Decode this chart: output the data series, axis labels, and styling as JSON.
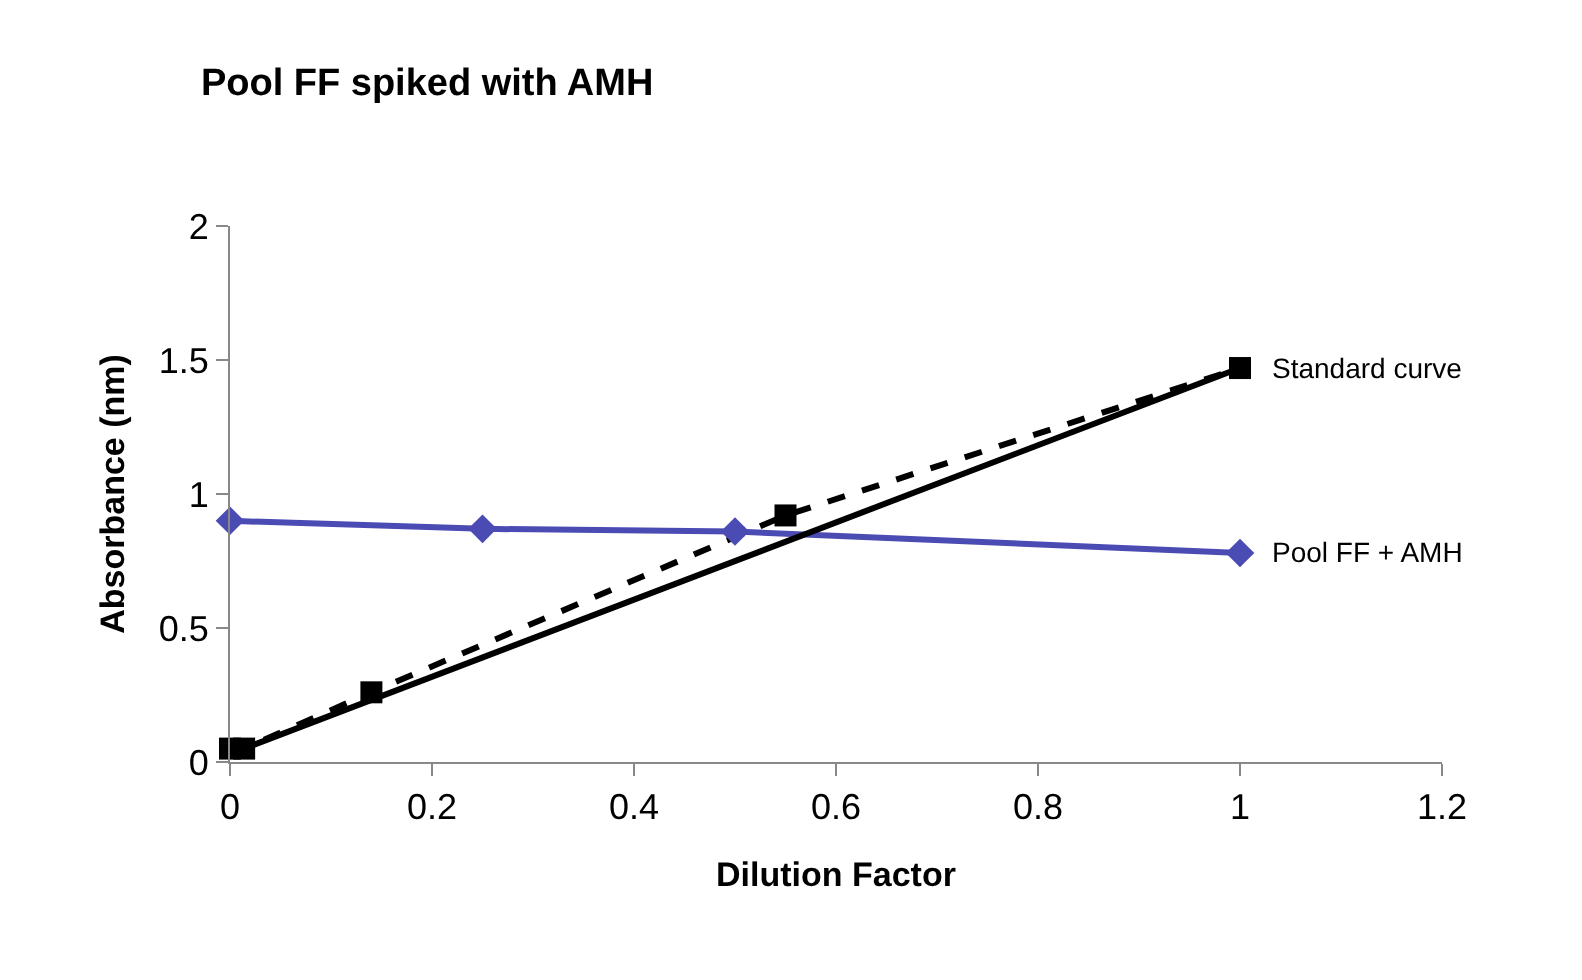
{
  "chart_data": {
    "type": "line",
    "title": "Pool FF spiked with AMH",
    "xlabel": "Dilution Factor",
    "ylabel": "Absorbance (nm)",
    "xlim": [
      0,
      1.2
    ],
    "xticks": [
      0,
      0.2,
      0.4,
      0.6,
      0.8,
      1,
      1.2
    ],
    "ylim": [
      0,
      2
    ],
    "yticks": [
      0,
      0.5,
      1,
      1.5,
      2
    ],
    "grid": false,
    "legend": false,
    "series": [
      {
        "name": "Standard curve",
        "color": "#000000",
        "marker": "square",
        "line_style": "dashed",
        "x": [
          0,
          0.014,
          0.14,
          0.55,
          1
        ],
        "values": [
          0.05,
          0.05,
          0.26,
          0.92,
          1.47
        ]
      },
      {
        "name": "Pool FF + AMH",
        "color": "#4b4bb4",
        "marker": "diamond",
        "line_style": "solid",
        "x": [
          0,
          0.25,
          0.5,
          1
        ],
        "values": [
          0.9,
          0.87,
          0.86,
          0.78
        ]
      },
      {
        "type": "line",
        "color": "#000000",
        "marker": "none",
        "line_style": "solid",
        "x": [
          0,
          1
        ],
        "values": [
          0.03,
          1.47
        ]
      }
    ]
  }
}
